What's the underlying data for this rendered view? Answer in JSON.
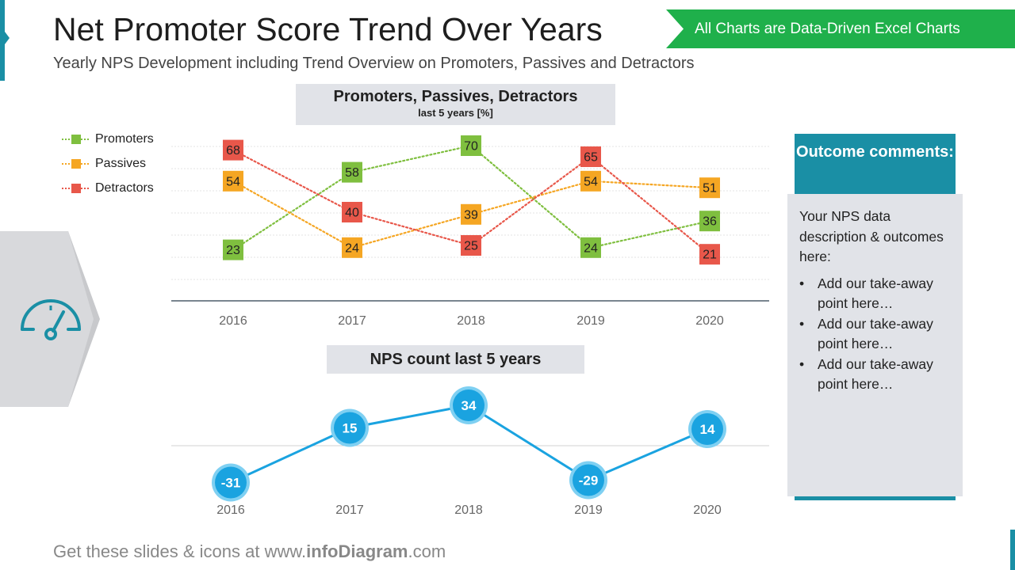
{
  "header": {
    "title": "Net Promoter Score Trend Over Years",
    "subtitle": "Yearly NPS Development including  Trend Overview on Promoters, Passives and Detractors",
    "badge": "All Charts are Data-Driven Excel Charts"
  },
  "chart_data": [
    {
      "type": "line",
      "title": "Promoters, Passives, Detractors",
      "subtitle": "last 5 years [%]",
      "categories": [
        "2016",
        "2017",
        "2018",
        "2019",
        "2020"
      ],
      "ylim": [
        0,
        75
      ],
      "grid": true,
      "legend_position": "top-left",
      "series": [
        {
          "name": "Promoters",
          "values": [
            23,
            58,
            70,
            24,
            36
          ],
          "color": "#7fbf3f"
        },
        {
          "name": "Passives",
          "values": [
            54,
            24,
            39,
            54,
            51
          ],
          "color": "#f5a623"
        },
        {
          "name": "Detractors",
          "values": [
            68,
            40,
            25,
            65,
            21
          ],
          "color": "#e8574a"
        }
      ]
    },
    {
      "type": "line",
      "title": "NPS count last 5 years",
      "categories": [
        "2016",
        "2017",
        "2018",
        "2019",
        "2020"
      ],
      "ylim": [
        -40,
        40
      ],
      "series": [
        {
          "values": [
            -31,
            15,
            34,
            -29,
            14
          ],
          "color": "#1aa3e0"
        }
      ]
    }
  ],
  "outcome": {
    "heading": "Outcome comments:",
    "description": "Your NPS data description & outcomes here:",
    "points": [
      "Add our take-away point here…",
      "Add our take-away point here…",
      "Add our take-away point here…"
    ]
  },
  "footer": {
    "prefix": "Get these slides & icons at www.",
    "brand": "infoDiagram",
    "suffix": ".com"
  },
  "icons": {
    "panel_icon": "gauge-icon"
  },
  "colors": {
    "accent": "#1a8fa5",
    "badge": "#1fb04b",
    "nps_line": "#1aa3e0"
  }
}
